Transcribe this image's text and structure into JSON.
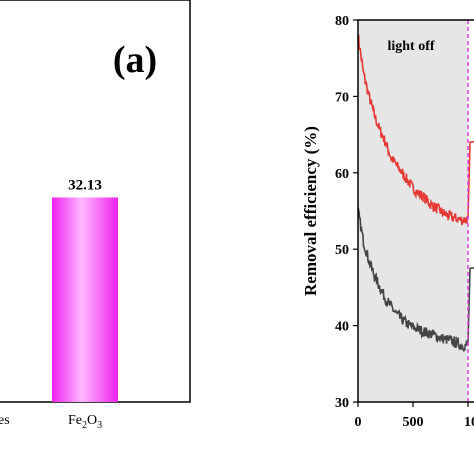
{
  "chart_data": [
    {
      "type": "bar",
      "panel_label": "(a)",
      "categories_visible": [
        "es",
        "Fe2O3"
      ],
      "categories": [
        {
          "label_main": "es",
          "label_sub": "",
          "label_tail": ""
        },
        {
          "label_main": "Fe",
          "label_sub": "2",
          "label_mid": "O",
          "label_sub2": "3"
        }
      ],
      "bars": [
        {
          "category": "Fe2O3",
          "value": 32.13,
          "value_label": "32.13",
          "color": "#ff33ff"
        }
      ],
      "ylim": [
        0,
        60
      ]
    },
    {
      "type": "line",
      "ylabel": "Removal efficiency (%)",
      "xlim": [
        0,
        1000
      ],
      "ylim": [
        30,
        80
      ],
      "xticks": [
        "0",
        "500",
        "10"
      ],
      "yticks": [
        "30",
        "40",
        "50",
        "60",
        "70",
        "80"
      ],
      "annotation": "light off",
      "shaded_region": [
        0,
        1000
      ],
      "shade_color": "#e6e6e6",
      "divider_x": 1000,
      "divider_color": "#e040e0",
      "series": [
        {
          "color": "#e53935",
          "points": [
            [
              0,
              78
            ],
            [
              50,
              73
            ],
            [
              100,
              70
            ],
            [
              150,
              67.5
            ],
            [
              200,
              65.5
            ],
            [
              250,
              64
            ],
            [
              300,
              62
            ],
            [
              350,
              61
            ],
            [
              400,
              60
            ],
            [
              450,
              59
            ],
            [
              500,
              58
            ],
            [
              550,
              57.3
            ],
            [
              600,
              56.8
            ],
            [
              650,
              56
            ],
            [
              700,
              55.5
            ],
            [
              750,
              55
            ],
            [
              800,
              54.5
            ],
            [
              850,
              54.2
            ],
            [
              900,
              54
            ],
            [
              950,
              53.8
            ],
            [
              1000,
              54
            ]
          ],
          "end_jump": 64
        },
        {
          "color": "#444444",
          "points": [
            [
              0,
              55
            ],
            [
              50,
              51
            ],
            [
              100,
              48.5
            ],
            [
              150,
              46.5
            ],
            [
              200,
              45
            ],
            [
              250,
              43.5
            ],
            [
              300,
              42.5
            ],
            [
              350,
              41.5
            ],
            [
              400,
              40.8
            ],
            [
              450,
              40.2
            ],
            [
              500,
              39.8
            ],
            [
              550,
              39.5
            ],
            [
              600,
              39.2
            ],
            [
              650,
              39
            ],
            [
              700,
              38.7
            ],
            [
              750,
              38.4
            ],
            [
              800,
              38.2
            ],
            [
              850,
              38
            ],
            [
              900,
              37.7
            ],
            [
              950,
              37.3
            ],
            [
              1000,
              37.5
            ]
          ],
          "end_jump": 47.5
        }
      ]
    }
  ]
}
